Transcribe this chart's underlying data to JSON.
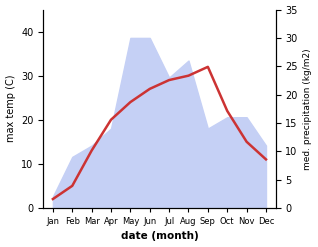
{
  "months": [
    "Jan",
    "Feb",
    "Mar",
    "Apr",
    "May",
    "Jun",
    "Jul",
    "Aug",
    "Sep",
    "Oct",
    "Nov",
    "Dec"
  ],
  "x": [
    0,
    1,
    2,
    3,
    4,
    5,
    6,
    7,
    8,
    9,
    10,
    11
  ],
  "temp": [
    2,
    5,
    13,
    20,
    24,
    27,
    29,
    30,
    32,
    22,
    15,
    11
  ],
  "precip": [
    2,
    9,
    11,
    14,
    30,
    30,
    23,
    26,
    14,
    16,
    16,
    11
  ],
  "temp_color": "#cc3333",
  "precip_fill_color": "#c5d0f5",
  "xlabel": "date (month)",
  "ylabel_left": "max temp (C)",
  "ylabel_right": "med. precipitation (kg/m2)",
  "ylim_left": [
    0,
    45
  ],
  "ylim_right": [
    0,
    35
  ],
  "yticks_left": [
    0,
    10,
    20,
    30,
    40
  ],
  "yticks_right": [
    0,
    5,
    10,
    15,
    20,
    25,
    30,
    35
  ],
  "bg_color": "#ffffff",
  "line_width": 1.8
}
